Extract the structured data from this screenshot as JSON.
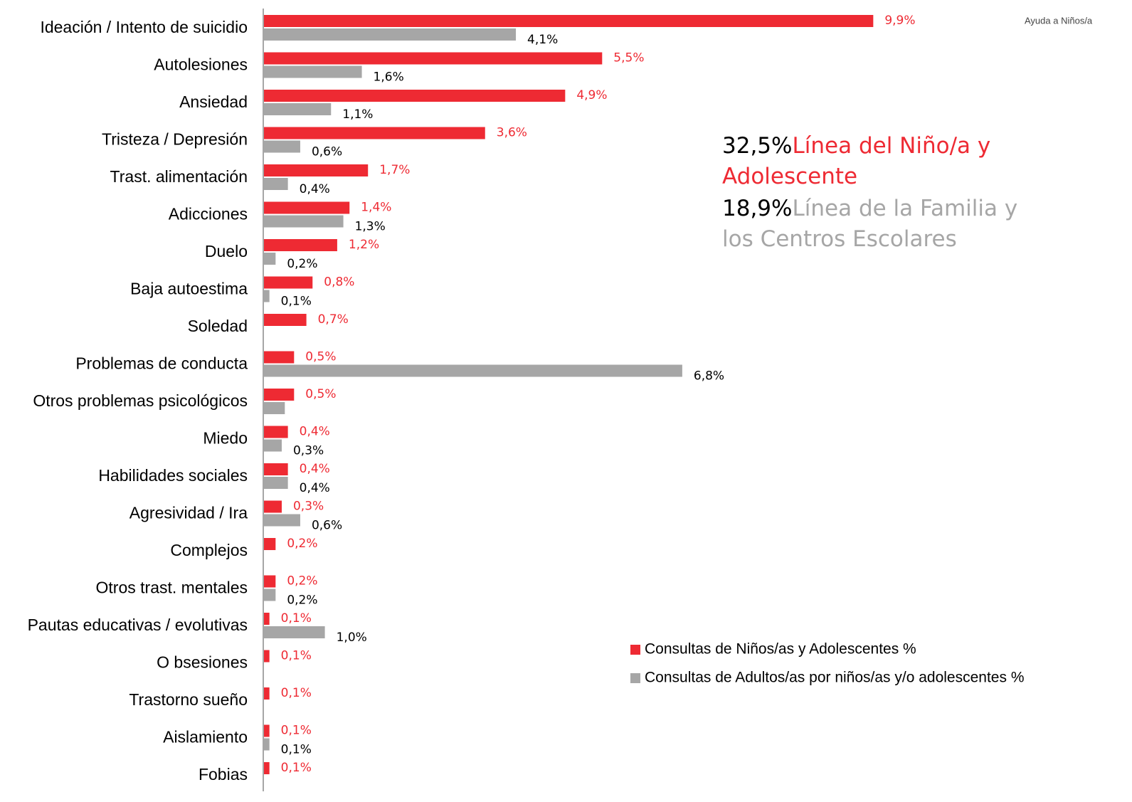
{
  "chart_data": {
    "type": "bar",
    "orientation": "horizontal",
    "categories": [
      "Ideación / Intento de suicidio",
      "Autolesiones",
      "Ansiedad",
      "Tristeza / Depresión",
      "Trast. alimentación",
      "Adicciones",
      "Duelo",
      "Baja autoestima",
      "Soledad",
      "Problemas de conducta",
      "Otros problemas psicológicos",
      "Miedo",
      "Habilidades sociales",
      "Agresividad / Ira",
      "Complejos",
      "Otros trast. mentales",
      "Pautas educativas / evolutivas",
      "O bsesiones",
      "Trastorno sueño",
      "Aislamiento",
      "Fobias"
    ],
    "series": [
      {
        "name": "Consultas de Niños/as y Adolescentes %",
        "color": "#ee2a33",
        "values": [
          9.9,
          5.5,
          4.9,
          3.6,
          1.7,
          1.4,
          1.2,
          0.8,
          0.7,
          0.5,
          0.5,
          0.4,
          0.4,
          0.3,
          0.2,
          0.2,
          0.1,
          0.1,
          0.1,
          0.1,
          0.1
        ],
        "value_labels": [
          "9,9%",
          "5,5%",
          "4,9%",
          "3,6%",
          "1,7%",
          "1,4%",
          "1,2%",
          "0,8%",
          "0,7%",
          "0,5%",
          "0,5%",
          "0,4%",
          "0,4%",
          "0,3%",
          "0,2%",
          "0,2%",
          "0,1%",
          "0,1%",
          "0,1%",
          "0,1%",
          "0,1%"
        ],
        "label_color": "#ee2a33"
      },
      {
        "name": "Consultas de Adultos/as por niños/as y/o adolescentes %",
        "color": "#a6a6a6",
        "values": [
          4.1,
          1.6,
          1.1,
          0.6,
          0.4,
          1.3,
          0.2,
          0.1,
          null,
          6.8,
          0.35,
          0.3,
          0.4,
          0.6,
          null,
          0.2,
          1.0,
          null,
          null,
          0.1,
          null
        ],
        "value_labels": [
          "4,1%",
          "1,6%",
          "1,1%",
          "0,6%",
          "0,4%",
          "1,3%",
          "0,2%",
          "0,1%",
          null,
          "6,8%",
          null,
          "0,3%",
          "0,4%",
          "0,6%",
          null,
          "0,2%",
          "1,0%",
          null,
          null,
          "0,1%",
          null
        ],
        "label_color": "#000000"
      }
    ],
    "xlim": [
      0,
      10
    ],
    "annotations": [
      {
        "value_text": "32,5%",
        "text": "Línea del Niño/a y Adolescente",
        "color": "#ee2a33"
      },
      {
        "value_text": "18,9%",
        "text": "Línea de la Familia y los Centros Escolares",
        "color": "#a6a6a6"
      }
    ],
    "logo_text": "Ayuda a Niños/a"
  }
}
